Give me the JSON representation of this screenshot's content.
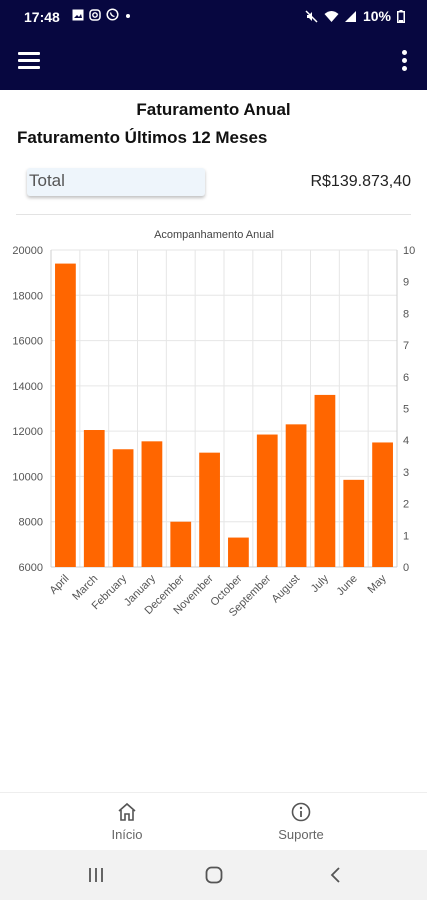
{
  "status_bar": {
    "time": "17:48",
    "battery": "10%",
    "icons": [
      "image-icon",
      "instagram-icon",
      "whatsapp-icon",
      "dot-icon",
      "mute-icon",
      "wifi-icon",
      "signal-icon",
      "battery-icon"
    ]
  },
  "app_bar": {
    "menu_icon": "hamburger-menu-icon",
    "more_icon": "more-vert-icon"
  },
  "page": {
    "title": "Faturamento Anual",
    "section_title": "Faturamento Últimos 12 Meses",
    "total_label": "Total",
    "total_value": "R$139.873,40"
  },
  "chart_data": {
    "type": "bar",
    "title": "Acompanhamento Anual",
    "categories": [
      "April",
      "March",
      "February",
      "January",
      "December",
      "November",
      "October",
      "September",
      "August",
      "July",
      "June",
      "May"
    ],
    "values": [
      19400,
      12050,
      11200,
      11550,
      8000,
      11050,
      7300,
      11850,
      12300,
      13600,
      9850,
      11500
    ],
    "ylim": [
      6000,
      20000
    ],
    "yticks": [
      6000,
      8000,
      10000,
      12000,
      14000,
      16000,
      18000,
      20000
    ],
    "y2lim": [
      0,
      10
    ],
    "y2ticks": [
      0,
      1,
      2,
      3,
      4,
      5,
      6,
      7,
      8,
      9,
      10
    ],
    "xlabel": "",
    "ylabel": "",
    "grid": true,
    "color": "#ff6600"
  },
  "bottom_nav": {
    "items": [
      {
        "label": "Início",
        "icon": "home-icon"
      },
      {
        "label": "Suporte",
        "icon": "info-icon"
      }
    ]
  },
  "system_nav": {
    "buttons": [
      "recent-apps-icon",
      "home-circle-icon",
      "back-icon"
    ]
  }
}
